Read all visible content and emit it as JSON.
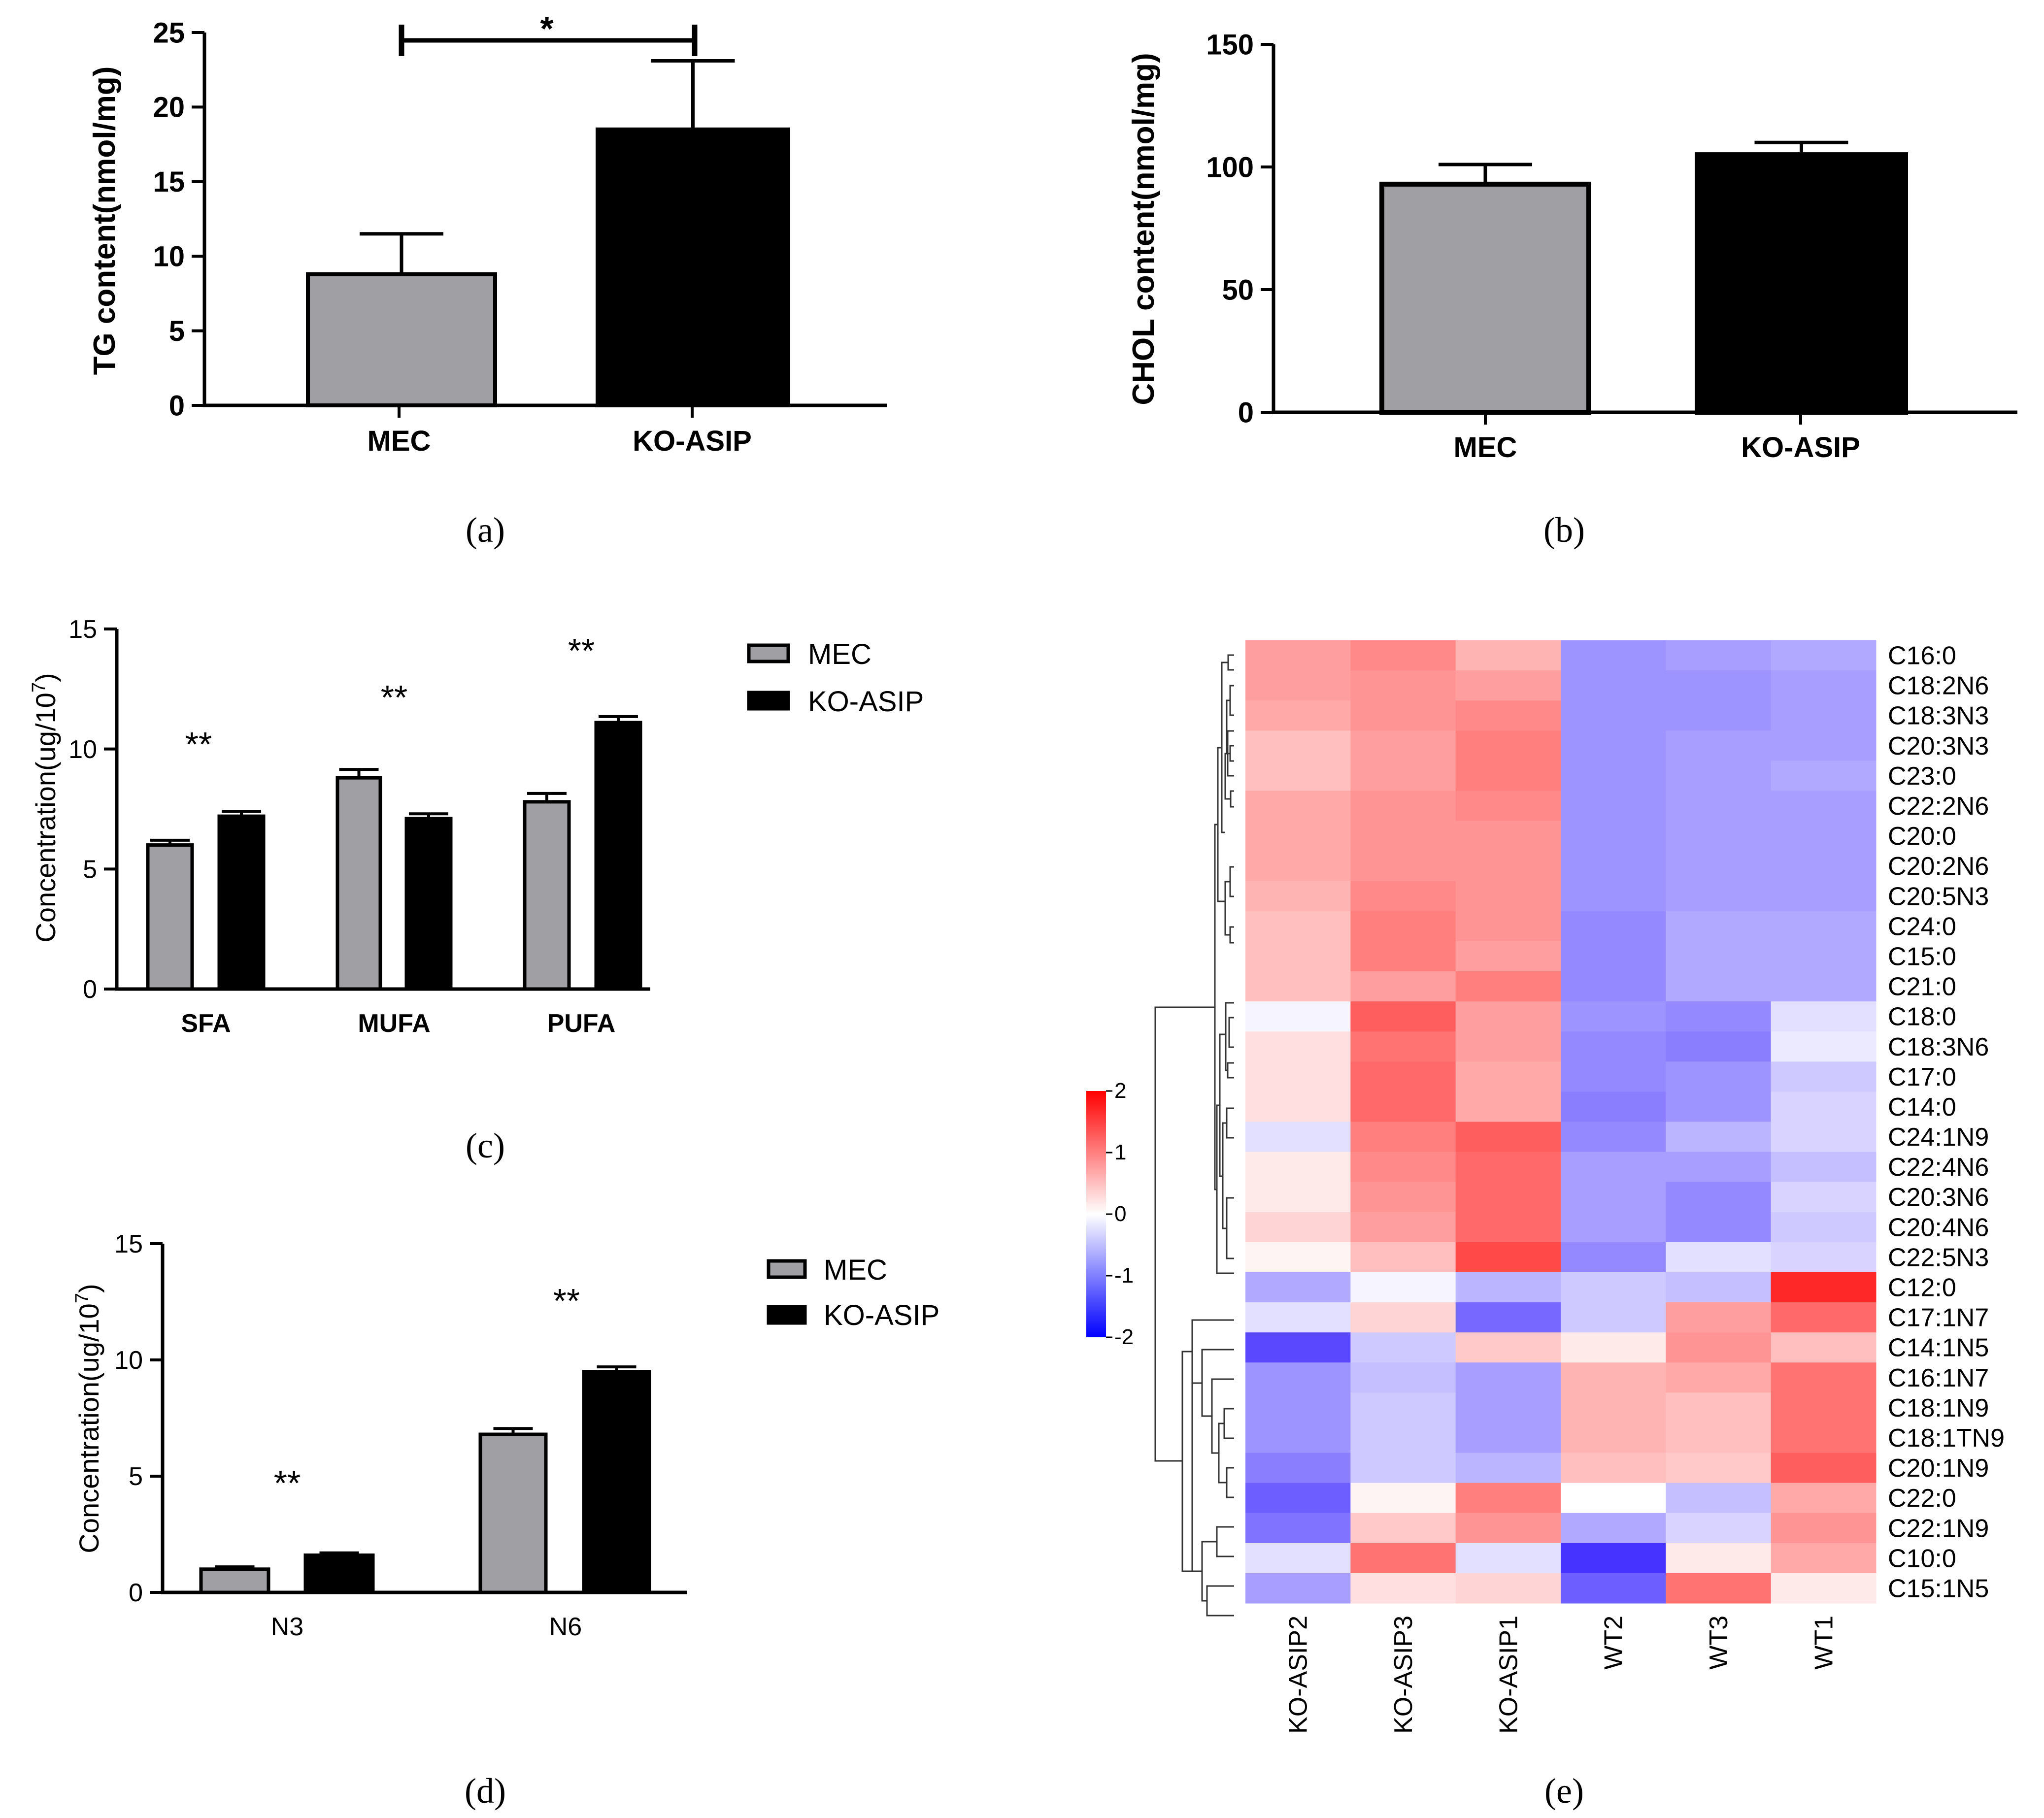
{
  "colors": {
    "mec": "#a0a0a4",
    "ko": "#000000",
    "axis": "#000000"
  },
  "panel_labels": {
    "a": "(a)",
    "b": "(b)",
    "c": "(c)",
    "d": "(d)",
    "e": "(e)"
  },
  "chart_data": [
    {
      "id": "a",
      "type": "bar",
      "ylabel": "TG content(nmol/mg)",
      "ylim": [
        0,
        25
      ],
      "yticks": [
        0,
        5,
        10,
        15,
        20,
        25
      ],
      "categories": [
        "MEC",
        "KO-ASIP"
      ],
      "values": [
        8.8,
        18.5
      ],
      "errors": [
        2.7,
        4.6
      ],
      "significance": [
        {
          "between": [
            0,
            1
          ],
          "label": "*"
        }
      ]
    },
    {
      "id": "b",
      "type": "bar",
      "ylabel": "CHOL content(nmol/mg)",
      "ylim": [
        0,
        150
      ],
      "yticks": [
        0,
        50,
        100,
        150
      ],
      "categories": [
        "MEC",
        "KO-ASIP"
      ],
      "values": [
        93,
        105
      ],
      "errors": [
        8,
        5
      ]
    },
    {
      "id": "c",
      "type": "bar",
      "ylabel": "Concentration(ug/10",
      "ylabel_sup": "7",
      "ylabel_end": ")",
      "ylim": [
        0,
        15
      ],
      "yticks": [
        0,
        5,
        10,
        15
      ],
      "categories": [
        "SFA",
        "MUFA",
        "PUFA"
      ],
      "series": [
        {
          "name": "MEC",
          "values": [
            6.0,
            8.8,
            7.8
          ],
          "errors": [
            0.2,
            0.35,
            0.35
          ]
        },
        {
          "name": "KO-ASIP",
          "values": [
            7.2,
            7.1,
            11.1
          ],
          "errors": [
            0.2,
            0.2,
            0.25
          ]
        }
      ],
      "annotations": [
        "**",
        "**",
        "**"
      ],
      "legend": [
        "MEC",
        "KO-ASIP"
      ]
    },
    {
      "id": "d",
      "type": "bar",
      "ylabel": "Concentration(ug/10",
      "ylabel_sup": "7",
      "ylabel_end": ")",
      "ylim": [
        0,
        15
      ],
      "yticks": [
        0,
        5,
        10,
        15
      ],
      "categories": [
        "N3",
        "N6"
      ],
      "series": [
        {
          "name": "MEC",
          "values": [
            1.0,
            6.8
          ],
          "errors": [
            0.1,
            0.25
          ]
        },
        {
          "name": "KO-ASIP",
          "values": [
            1.6,
            9.5
          ],
          "errors": [
            0.1,
            0.2
          ]
        }
      ],
      "annotations": [
        "**",
        "**"
      ],
      "legend": [
        "MEC",
        "KO-ASIP"
      ]
    },
    {
      "id": "e",
      "type": "heatmap",
      "columns": [
        "KO-ASIP2",
        "KO-ASIP3",
        "KO-ASIP1",
        "WT2",
        "WT3",
        "WT1"
      ],
      "rows": [
        "C16:0",
        "C18:2N6",
        "C18:3N3",
        "C20:3N3",
        "C23:0",
        "C22:2N6",
        "C20:0",
        "C20:2N6",
        "C20:5N3",
        "C24:0",
        "C15:0",
        "C21:0",
        "C18:0",
        "C18:3N6",
        "C17:0",
        "C14:0",
        "C24:1N9",
        "C22:4N6",
        "C20:3N6",
        "C20:4N6",
        "C22:5N3",
        "C12:0",
        "C17:1N7",
        "C14:1N5",
        "C16:1N7",
        "C18:1N9",
        "C18:1TN9",
        "C20:1N9",
        "C22:0",
        "C22:1N9",
        "C10:0",
        "C15:1N5"
      ],
      "values": [
        [
          0.9,
          1.1,
          0.7,
          -1.0,
          -0.9,
          -0.8
        ],
        [
          0.9,
          1.0,
          0.9,
          -1.0,
          -1.0,
          -0.9
        ],
        [
          0.8,
          1.0,
          1.1,
          -1.0,
          -1.0,
          -0.9
        ],
        [
          0.6,
          0.9,
          1.2,
          -1.0,
          -0.9,
          -0.9
        ],
        [
          0.6,
          0.9,
          1.2,
          -1.0,
          -0.9,
          -0.8
        ],
        [
          0.8,
          1.0,
          1.1,
          -1.0,
          -0.9,
          -0.9
        ],
        [
          0.8,
          1.0,
          1.0,
          -1.0,
          -0.9,
          -0.9
        ],
        [
          0.8,
          1.0,
          1.0,
          -1.0,
          -0.9,
          -0.9
        ],
        [
          0.7,
          1.1,
          1.0,
          -1.0,
          -0.9,
          -0.9
        ],
        [
          0.6,
          1.2,
          1.0,
          -1.1,
          -0.8,
          -0.8
        ],
        [
          0.6,
          1.2,
          0.9,
          -1.1,
          -0.8,
          -0.8
        ],
        [
          0.6,
          0.9,
          1.2,
          -1.1,
          -0.8,
          -0.8
        ],
        [
          -0.1,
          1.5,
          0.9,
          -1.0,
          -1.1,
          -0.3
        ],
        [
          0.3,
          1.3,
          0.9,
          -1.1,
          -1.2,
          -0.2
        ],
        [
          0.3,
          1.4,
          0.8,
          -1.1,
          -1.0,
          -0.5
        ],
        [
          0.3,
          1.4,
          0.8,
          -1.2,
          -1.0,
          -0.4
        ],
        [
          -0.3,
          1.2,
          1.5,
          -1.1,
          -0.7,
          -0.4
        ],
        [
          0.2,
          1.1,
          1.4,
          -0.9,
          -0.9,
          -0.6
        ],
        [
          0.2,
          1.0,
          1.4,
          -0.9,
          -1.1,
          -0.4
        ],
        [
          0.4,
          0.9,
          1.4,
          -0.9,
          -1.1,
          -0.5
        ],
        [
          0.1,
          0.6,
          1.7,
          -1.1,
          -0.3,
          -0.4
        ],
        [
          -0.8,
          -0.1,
          -0.7,
          -0.5,
          -0.6,
          2.0
        ],
        [
          -0.3,
          0.4,
          -1.4,
          -0.5,
          0.9,
          1.4
        ],
        [
          -1.7,
          -0.5,
          0.5,
          0.2,
          1.0,
          0.6
        ],
        [
          -1.0,
          -0.6,
          -0.9,
          0.7,
          0.8,
          1.3
        ],
        [
          -1.0,
          -0.5,
          -0.9,
          0.7,
          0.6,
          1.3
        ],
        [
          -1.0,
          -0.5,
          -0.9,
          0.7,
          0.6,
          1.3
        ],
        [
          -1.2,
          -0.5,
          -0.7,
          0.6,
          0.5,
          1.5
        ],
        [
          -1.5,
          0.1,
          1.2,
          0.0,
          -0.6,
          0.8
        ],
        [
          -1.3,
          0.5,
          1.0,
          -0.8,
          -0.4,
          1.0
        ],
        [
          -0.3,
          1.3,
          -0.3,
          -1.9,
          0.2,
          0.8
        ],
        [
          -0.9,
          0.3,
          0.4,
          -1.5,
          1.3,
          0.2
        ]
      ],
      "colorbar": {
        "ticks": [
          2,
          1,
          0,
          -1,
          -2
        ],
        "range": [
          -2,
          2
        ],
        "high": "#ff0000",
        "mid": "#ffffff",
        "low": "#0000ff"
      }
    }
  ]
}
